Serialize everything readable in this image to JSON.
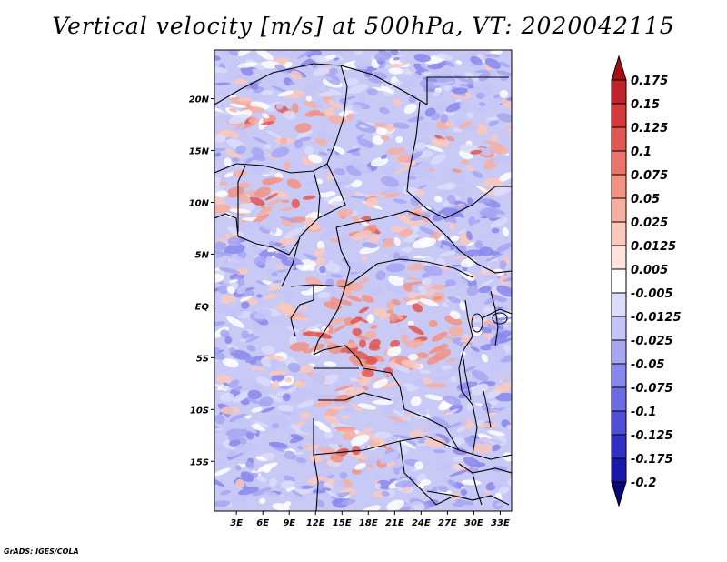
{
  "title": "Vertical velocity [m/s] at 500hPa, VT: 2020042115",
  "credit": "GrADS: IGES/COLA",
  "map": {
    "lat_ticks": [
      "20N",
      "15N",
      "10N",
      "5N",
      "EQ",
      "5S",
      "10S",
      "15S"
    ],
    "lat_values": [
      20,
      15,
      10,
      5,
      0,
      -5,
      -10,
      -15
    ],
    "lon_ticks": [
      "3E",
      "6E",
      "9E",
      "12E",
      "15E",
      "18E",
      "21E",
      "24E",
      "27E",
      "30E",
      "33E"
    ],
    "lon_values": [
      3,
      6,
      9,
      12,
      15,
      18,
      21,
      24,
      27,
      30,
      33
    ],
    "lat_range": [
      -19.8,
      24.7
    ],
    "lon_range": [
      0.5,
      34.3
    ]
  },
  "colorbar": {
    "labels": [
      "0.175",
      "0.15",
      "0.125",
      "0.1",
      "0.075",
      "0.05",
      "0.025",
      "0.0125",
      "0.005",
      "-0.005",
      "-0.0125",
      "-0.025",
      "-0.05",
      "-0.075",
      "-0.1",
      "-0.125",
      "-0.175",
      "-0.2"
    ],
    "colors": [
      "#a50f15",
      "#c0232a",
      "#d6393b",
      "#e2574f",
      "#ea7467",
      "#f19282",
      "#f6ae9f",
      "#fac8bc",
      "#fde3dc",
      "#ffffff",
      "#dcdcfb",
      "#c4c4f7",
      "#a6a6f2",
      "#8888ec",
      "#6b6be3",
      "#4e4ed8",
      "#3030c6",
      "#1818a8",
      "#08087a"
    ]
  }
}
